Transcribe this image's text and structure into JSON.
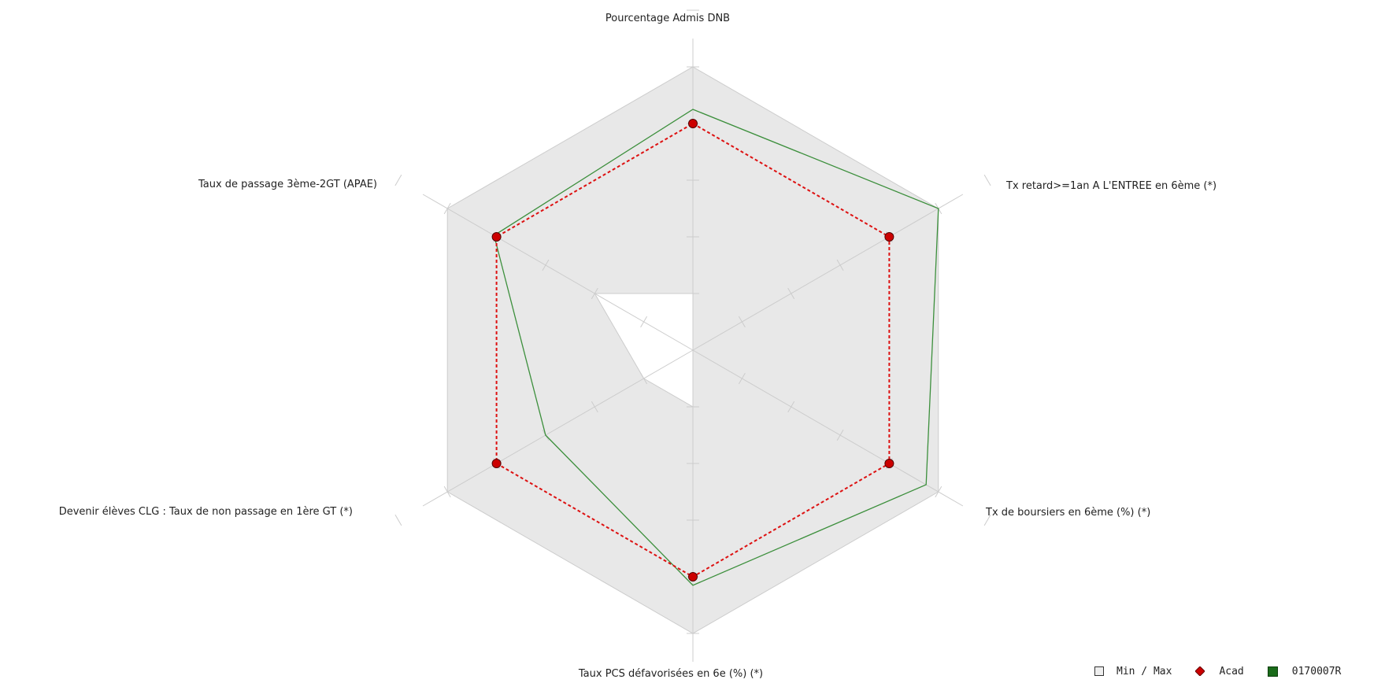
{
  "chart_data": {
    "type": "radar",
    "axes": [
      "Pourcentage Admis DNB",
      "Tx retard>=1an A L'ENTREE en 6ème (*)",
      "Tx de boursiers en 6ème (%) (*)",
      "Taux PCS défavorisées en 6e (%) (*)",
      "Devenir élèves CLG : Taux de non passage en 1ère GT (*)",
      "Taux de passage 3ème-2GT (APAE)"
    ],
    "range": [
      0,
      100
    ],
    "ticks": [
      20,
      40,
      60,
      80,
      100
    ],
    "series": [
      {
        "name": "Min / Max",
        "kind": "band",
        "min": [
          20,
          0,
          0,
          20,
          20,
          40
        ],
        "max": [
          100,
          100,
          100,
          100,
          100,
          100
        ]
      },
      {
        "name": "Acad",
        "kind": "line-markers",
        "values": [
          80,
          80,
          80,
          80,
          80,
          80
        ]
      },
      {
        "name": "0170007R",
        "kind": "line",
        "values": [
          85,
          100,
          95,
          83,
          60,
          81
        ]
      }
    ],
    "legend_position": "bottom-right"
  },
  "colors": {
    "band_fill": "#e8e8e8",
    "band_stroke": "#cccccc",
    "grid": "#cccccc",
    "acad": "#dd1111",
    "acad_marker": "#cc0000",
    "etab": "#3c8f3c",
    "legend_green": "#1a6b1a"
  },
  "legend": {
    "minmax_label": "Min / Max",
    "acad_label": "Acad",
    "etab_label": "0170007R"
  }
}
